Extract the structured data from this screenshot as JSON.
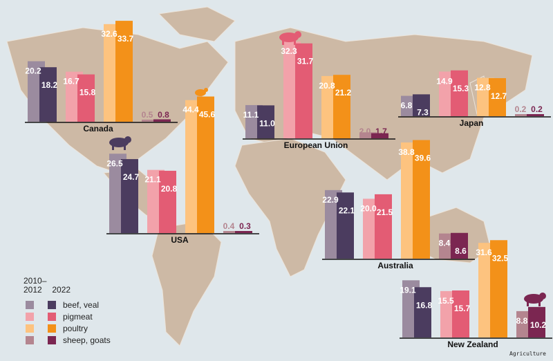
{
  "chart_data": {
    "type": "bar",
    "categories": [
      "beef, veal",
      "pigmeat",
      "poultry",
      "sheep, goats"
    ],
    "series_periods": [
      "2010–2012",
      "2022"
    ],
    "colors": {
      "beef, veal": [
        "#9b8b9f",
        "#4b3c5f"
      ],
      "pigmeat": [
        "#f2a2aa",
        "#e35c74"
      ],
      "poultry": [
        "#fdc37f",
        "#f39119"
      ],
      "sheep, goats": [
        "#b4858f",
        "#7b2651"
      ]
    },
    "panels": [
      {
        "region": "Canada",
        "values": [
          [
            20.2,
            18.2
          ],
          [
            16.7,
            15.8
          ],
          [
            32.6,
            33.7
          ],
          [
            0.5,
            0.8
          ]
        ]
      },
      {
        "region": "European Union",
        "values": [
          [
            11.1,
            11.0
          ],
          [
            32.3,
            31.7
          ],
          [
            20.8,
            21.2
          ],
          [
            2.0,
            1.7
          ]
        ]
      },
      {
        "region": "Japan",
        "values": [
          [
            6.8,
            7.3
          ],
          [
            14.9,
            15.3
          ],
          [
            12.8,
            12.7
          ],
          [
            0.2,
            0.2
          ]
        ]
      },
      {
        "region": "USA",
        "values": [
          [
            26.5,
            24.7
          ],
          [
            21.1,
            20.8
          ],
          [
            44.4,
            45.6
          ],
          [
            0.4,
            0.3
          ]
        ]
      },
      {
        "region": "Australia",
        "values": [
          [
            22.9,
            22.1
          ],
          [
            20.0,
            21.5
          ],
          [
            38.8,
            39.6
          ],
          [
            8.4,
            8.6
          ]
        ]
      },
      {
        "region": "New Zealand",
        "values": [
          [
            19.1,
            16.8
          ],
          [
            15.5,
            15.7
          ],
          [
            31.6,
            32.5
          ],
          [
            8.8,
            10.2
          ]
        ]
      }
    ]
  },
  "legend": {
    "period1": "2010–\n2012",
    "period1_a": "2010–",
    "period1_b": "2012",
    "period2": "2022",
    "items": [
      "beef, veal",
      "pigmeat",
      "poultry",
      "sheep, goats"
    ]
  },
  "credit": "Agriculture",
  "icons": [
    "pig-icon",
    "cow-icon",
    "bird-icon",
    "sheep-icon"
  ]
}
